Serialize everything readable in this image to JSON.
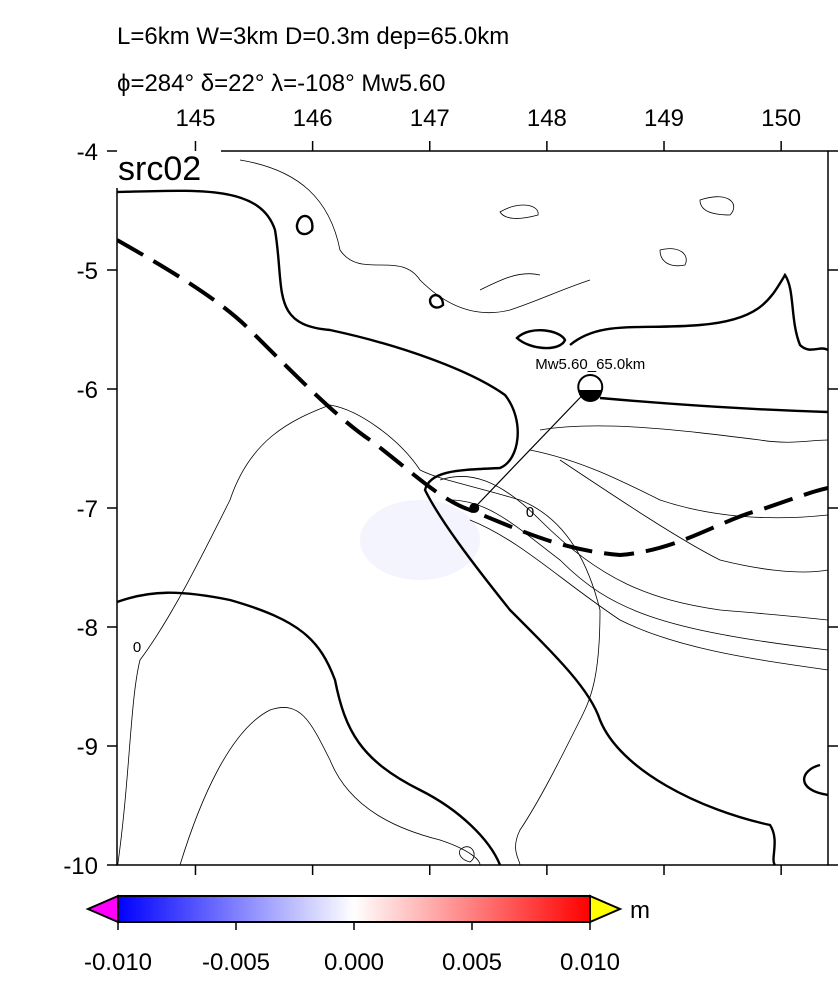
{
  "title_line1": "L=6km W=3km D=0.3m dep=65.0km",
  "title_line2": "ϕ=284° δ=22° λ=-108° Mw5.60",
  "panel_label": "src02",
  "xlim": [
    144.33,
    150.4
  ],
  "xticks": [
    145,
    146,
    147,
    148,
    149,
    150
  ],
  "ylim": [
    -10,
    -4
  ],
  "yticks": [
    -4,
    -5,
    -6,
    -7,
    -8,
    -9,
    -10
  ],
  "event": {
    "lon": 147.38,
    "lat": -7.0,
    "label": "Mw5.60_65.0km"
  },
  "contour_labels": [
    "0",
    "0"
  ],
  "colorbar": {
    "lim": [
      -0.01,
      0.01
    ],
    "ticks": [
      {
        "value": -0.01,
        "label": "-0.010"
      },
      {
        "value": -0.005,
        "label": "-0.005"
      },
      {
        "value": 0,
        "label": "0.000"
      },
      {
        "value": 0.005,
        "label": "0.005"
      },
      {
        "value": 0.01,
        "label": "0.010"
      }
    ],
    "unit": "m",
    "colors": [
      "#0000ff",
      "#ffffff",
      "#ff0000"
    ],
    "low_color": "#ff00ff",
    "high_color": "#ffff00"
  }
}
